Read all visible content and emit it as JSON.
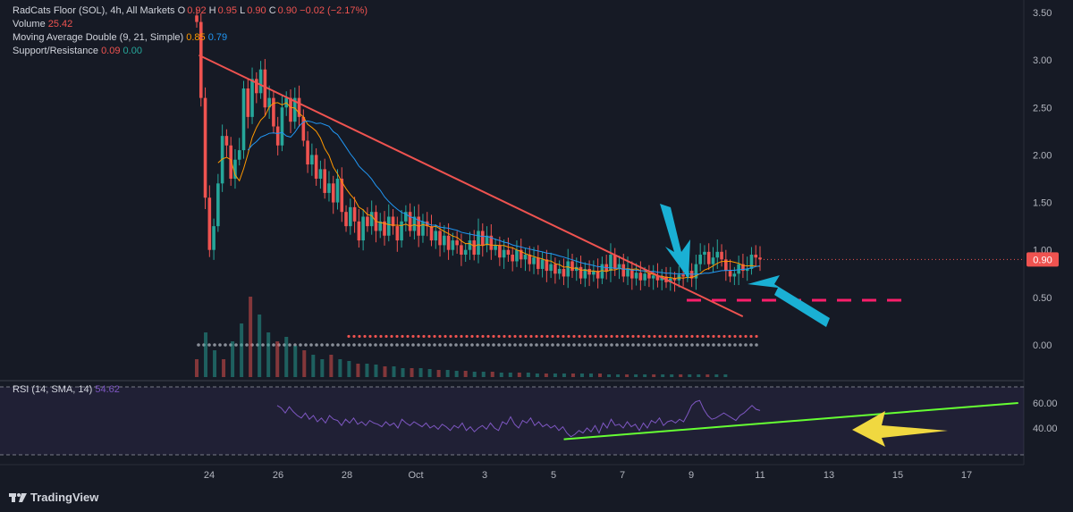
{
  "header": {
    "symbol": "RadCats Floor (SOL), 4h, All Markets",
    "o_label": "O",
    "o_value": "0.92",
    "h_label": "H",
    "h_value": "0.95",
    "l_label": "L",
    "l_value": "0.90",
    "c_label": "C",
    "c_value": "0.90",
    "change": "−0.02 (−2.17%)"
  },
  "indicators": {
    "volume_label": "Volume",
    "volume_value": "25.42",
    "ma_label": "Moving Average Double (9, 21, Simple)",
    "ma_fast": "0.85",
    "ma_slow": "0.79",
    "sr_label": "Support/Resistance",
    "sr_res": "0.09",
    "sr_sup": "0.00",
    "rsi_label": "RSI (14, SMA, 14)",
    "rsi_value": "54.62"
  },
  "price_badge": "0.90",
  "brand": "TradingView",
  "colors": {
    "up": "#26a69a",
    "down": "#ef5350",
    "ma_fast": "#ff9800",
    "ma_slow": "#2196f3",
    "rsi": "#7e57c2",
    "trend": "#ef5350",
    "rsi_trend": "#66ff33",
    "arrow_cyan": "#1ab0d4",
    "arrow_yellow": "#f0d840",
    "dash_pink": "#ff1f6b"
  },
  "chart_data": {
    "type": "candlestick",
    "price_axis": {
      "ticks": [
        "3.50",
        "3.00",
        "2.50",
        "2.00",
        "1.50",
        "1.00",
        "0.50",
        "0.00"
      ],
      "range": [
        -0.25,
        3.5
      ]
    },
    "rsi_axis": {
      "ticks": [
        "60.00",
        "40.00"
      ],
      "bands": [
        70,
        30
      ]
    },
    "x_ticks": [
      "24",
      "26",
      "28",
      "Oct",
      "3",
      "5",
      "7",
      "9",
      "11",
      "13",
      "15",
      "17"
    ],
    "x_tick_index": [
      0,
      2,
      4,
      6,
      8,
      10,
      12,
      14,
      16,
      18,
      20,
      22
    ],
    "closes_start_index": -0.8,
    "closes_step_days": 0.1667,
    "closes": [
      3.4,
      2.6,
      1.55,
      1.0,
      1.25,
      1.7,
      2.2,
      2.1,
      1.75,
      1.95,
      2.05,
      2.7,
      2.4,
      2.8,
      2.65,
      2.9,
      2.5,
      2.6,
      2.3,
      2.1,
      2.5,
      2.6,
      2.35,
      2.6,
      2.4,
      2.15,
      1.9,
      2.0,
      1.75,
      1.85,
      1.6,
      1.7,
      1.5,
      1.75,
      1.4,
      1.25,
      1.45,
      1.3,
      1.1,
      1.35,
      1.25,
      1.4,
      1.2,
      1.3,
      1.15,
      1.35,
      1.25,
      1.1,
      1.3,
      1.4,
      1.2,
      1.35,
      1.15,
      1.3,
      1.25,
      1.1,
      1.2,
      1.05,
      1.15,
      1.0,
      1.1,
      1.05,
      0.95,
      1.0,
      1.1,
      0.95,
      1.2,
      1.05,
      1.15,
      1.0,
      1.05,
      0.92,
      1.0,
      0.95,
      0.88,
      1.0,
      0.9,
      0.95,
      0.85,
      0.92,
      0.8,
      0.9,
      0.78,
      0.85,
      0.75,
      0.8,
      0.72,
      0.88,
      0.78,
      0.82,
      0.7,
      0.8,
      0.74,
      0.78,
      0.7,
      0.85,
      0.78,
      0.95,
      0.8,
      0.85,
      0.72,
      0.8,
      0.7,
      0.76,
      0.68,
      0.75,
      0.7,
      0.73,
      0.68,
      0.72,
      0.66,
      0.7,
      0.68,
      0.74,
      0.72,
      0.78,
      0.7,
      0.85,
      0.95,
      0.98,
      0.85,
      0.92,
      0.98,
      0.9,
      0.78,
      0.72,
      0.75,
      0.85,
      0.78,
      0.8,
      0.95,
      0.92,
      0.9
    ],
    "volume": [
      0.2,
      0.5,
      0.3,
      0.2,
      0.4,
      0.6,
      0.9,
      0.7,
      0.5,
      0.4,
      0.45,
      0.35,
      0.3,
      0.25,
      0.2,
      0.25,
      0.2,
      0.18,
      0.15,
      0.15,
      0.14,
      0.12,
      0.12,
      0.1,
      0.1,
      0.1,
      0.09,
      0.08,
      0.08,
      0.07,
      0.07,
      0.06,
      0.06,
      0.06,
      0.05,
      0.05,
      0.05,
      0.05,
      0.04,
      0.04,
      0.04,
      0.04,
      0.04,
      0.04,
      0.04,
      0.04,
      0.03,
      0.03,
      0.03,
      0.03,
      0.03,
      0.03,
      0.03,
      0.03,
      0.03,
      0.03,
      0.03,
      0.03,
      0.03,
      0.03
    ],
    "rsi": [
      58,
      56,
      52,
      57,
      53,
      50,
      48,
      52,
      47,
      50,
      45,
      48,
      44,
      50,
      47,
      46,
      42,
      47,
      44,
      48,
      43,
      45,
      42,
      46,
      44,
      43,
      41,
      45,
      42,
      44,
      40,
      47,
      44,
      42,
      45,
      43,
      41,
      44,
      40,
      42,
      39,
      43,
      41,
      38,
      42,
      40,
      44,
      38,
      41,
      37,
      40,
      42,
      39,
      44,
      40,
      38,
      45,
      43,
      49,
      43,
      40,
      46,
      44,
      48,
      42,
      45,
      41,
      43,
      40,
      42,
      38,
      41,
      36,
      33,
      35,
      38,
      36,
      40,
      37,
      42,
      36,
      44,
      40,
      47,
      42,
      43,
      40,
      45,
      41,
      43,
      38,
      44,
      40,
      46,
      44,
      48,
      42,
      45,
      46,
      44,
      47,
      45,
      51,
      58,
      61,
      62,
      55,
      50,
      47,
      48,
      50,
      52,
      50,
      48,
      46,
      50,
      52,
      55,
      58,
      55,
      54
    ],
    "support_level": 0.0,
    "resistance_level": 0.09,
    "horizontal_level": 0.47,
    "trendline": {
      "from": {
        "x": -0.3,
        "y": 3.05
      },
      "to": {
        "x": 15.5,
        "y": 0.3
      }
    },
    "rsi_trendline": {
      "from": {
        "x": 10.3,
        "y": 31
      },
      "to": {
        "x": 23.5,
        "y": 60
      }
    }
  }
}
